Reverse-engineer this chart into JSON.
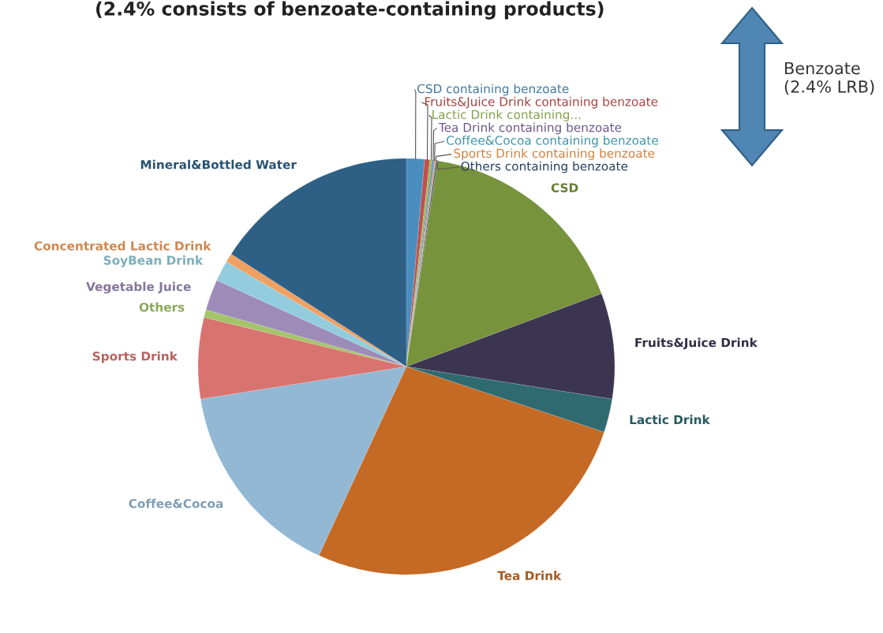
{
  "chart_data": {
    "type": "pie",
    "title": "(2.4% consists of benzoate-containing products)",
    "categories": [
      "CSD containing benzoate",
      "Fruits&Juice Drink containing benzoate",
      "Lactic Drink containing...",
      "Tea Drink containing benzoate",
      "Coffee&Cocoa containing benzoate",
      "Sports Drink containing benzoate",
      "Others containing benzoate",
      "CSD",
      "Fruits&Juice Drink",
      "Lactic Drink",
      "Tea Drink",
      "Coffee&Cocoa",
      "Sports Drink",
      "Others",
      "Vegetable Juice",
      "SoyBean Drink",
      "Concentrated Lactic Drink",
      "Mineral&Bottled Water"
    ],
    "values": [
      1.4,
      0.4,
      0.2,
      0.1,
      0.1,
      0.1,
      0.1,
      16.9,
      8.2,
      2.6,
      26.8,
      15.6,
      6.3,
      0.6,
      2.4,
      1.6,
      0.7,
      15.9
    ],
    "colors": [
      "#4a8ec0",
      "#c0504d",
      "#9bbb59",
      "#8064a2",
      "#4bacc6",
      "#f79646",
      "#2c4d75",
      "#77933c",
      "#3c3552",
      "#2f6a70",
      "#c46a25",
      "#93b8d4",
      "#d9736f",
      "#a4c46a",
      "#9d8bb8",
      "#93cddd",
      "#f0a060",
      "#2e6086"
    ],
    "annotations": [
      "Benzoate\n(2.4% LRB)"
    ]
  }
}
